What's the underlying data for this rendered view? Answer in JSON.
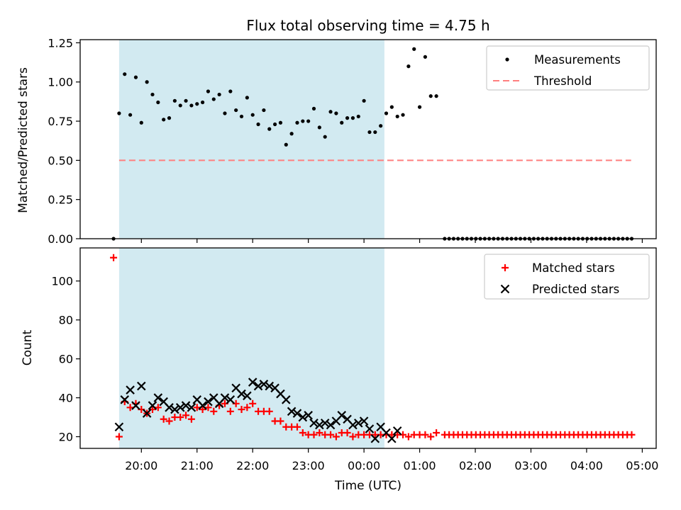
{
  "title": "Flux total observing time = 4.75 h",
  "colors": {
    "shade": "#add8e6",
    "measurement": "#000000",
    "threshold": "#ff7f7f",
    "matched": "#ff0000",
    "predicted": "#000000"
  },
  "chart_data": [
    {
      "type": "scatter",
      "panel": "top",
      "title": "Flux total observing time = 4.75 h",
      "ylabel": "Matched/Predicted stars",
      "xlabel": "",
      "x_is_time_in_hours_since": "19:00 UTC",
      "xlim": [
        18.9,
        29.25
      ],
      "ylim": [
        0,
        1.27
      ],
      "yticks": [
        0,
        0.25,
        0.5,
        0.75,
        1.0,
        1.25
      ],
      "ytick_labels": [
        "0.00",
        "0.25",
        "0.50",
        "0.75",
        "1.00",
        "1.25"
      ],
      "shaded_interval": [
        "19:36",
        "00:22"
      ],
      "legend_position": "top-right",
      "threshold": {
        "name": "Threshold",
        "value": 0.5,
        "x_range": [
          "19:36",
          "04:48"
        ],
        "style": "dashed"
      },
      "series": [
        {
          "name": "Measurements",
          "marker": "dot",
          "points": [
            [
              19.5,
              0.0
            ],
            [
              19.6,
              0.8
            ],
            [
              19.7,
              1.05
            ],
            [
              19.8,
              0.79
            ],
            [
              19.9,
              1.03
            ],
            [
              20.0,
              0.74
            ],
            [
              20.1,
              1.0
            ],
            [
              20.2,
              0.92
            ],
            [
              20.3,
              0.87
            ],
            [
              20.4,
              0.76
            ],
            [
              20.5,
              0.77
            ],
            [
              20.6,
              0.88
            ],
            [
              20.7,
              0.85
            ],
            [
              20.8,
              0.88
            ],
            [
              20.9,
              0.85
            ],
            [
              21.0,
              0.86
            ],
            [
              21.1,
              0.87
            ],
            [
              21.2,
              0.94
            ],
            [
              21.3,
              0.89
            ],
            [
              21.4,
              0.92
            ],
            [
              21.5,
              0.8
            ],
            [
              21.6,
              0.94
            ],
            [
              21.7,
              0.82
            ],
            [
              21.8,
              0.78
            ],
            [
              21.9,
              0.9
            ],
            [
              22.0,
              0.79
            ],
            [
              22.1,
              0.73
            ],
            [
              22.2,
              0.82
            ],
            [
              22.3,
              0.7
            ],
            [
              22.4,
              0.73
            ],
            [
              22.5,
              0.74
            ],
            [
              22.6,
              0.6
            ],
            [
              22.7,
              0.67
            ],
            [
              22.8,
              0.74
            ],
            [
              22.9,
              0.75
            ],
            [
              23.0,
              0.75
            ],
            [
              23.1,
              0.83
            ],
            [
              23.2,
              0.71
            ],
            [
              23.3,
              0.65
            ],
            [
              23.4,
              0.81
            ],
            [
              23.5,
              0.8
            ],
            [
              23.6,
              0.74
            ],
            [
              23.7,
              0.77
            ],
            [
              23.8,
              0.77
            ],
            [
              23.9,
              0.78
            ],
            [
              24.0,
              0.88
            ],
            [
              24.1,
              0.68
            ],
            [
              24.2,
              0.68
            ],
            [
              24.3,
              0.72
            ],
            [
              24.4,
              0.8
            ],
            [
              24.5,
              0.84
            ],
            [
              24.6,
              0.78
            ],
            [
              24.7,
              0.79
            ],
            [
              24.8,
              1.1
            ],
            [
              24.9,
              1.21
            ],
            [
              25.0,
              0.84
            ],
            [
              25.1,
              1.16
            ],
            [
              25.2,
              0.91
            ],
            [
              25.3,
              0.91
            ],
            [
              25.45,
              0
            ],
            [
              25.53,
              0
            ],
            [
              25.61,
              0
            ],
            [
              25.69,
              0
            ],
            [
              25.77,
              0
            ],
            [
              25.85,
              0
            ],
            [
              25.93,
              0
            ],
            [
              26.01,
              0
            ],
            [
              26.09,
              0
            ],
            [
              26.17,
              0
            ],
            [
              26.25,
              0
            ],
            [
              26.33,
              0
            ],
            [
              26.41,
              0
            ],
            [
              26.49,
              0
            ],
            [
              26.57,
              0
            ],
            [
              26.65,
              0
            ],
            [
              26.73,
              0
            ],
            [
              26.81,
              0
            ],
            [
              26.89,
              0
            ],
            [
              26.97,
              0
            ],
            [
              27.05,
              0
            ],
            [
              27.13,
              0
            ],
            [
              27.21,
              0
            ],
            [
              27.29,
              0
            ],
            [
              27.37,
              0
            ],
            [
              27.45,
              0
            ],
            [
              27.53,
              0
            ],
            [
              27.61,
              0
            ],
            [
              27.69,
              0
            ],
            [
              27.77,
              0
            ],
            [
              27.85,
              0
            ],
            [
              27.93,
              0
            ],
            [
              28.01,
              0
            ],
            [
              28.09,
              0
            ],
            [
              28.17,
              0
            ],
            [
              28.25,
              0
            ],
            [
              28.33,
              0
            ],
            [
              28.41,
              0
            ],
            [
              28.49,
              0
            ],
            [
              28.57,
              0
            ],
            [
              28.65,
              0
            ],
            [
              28.73,
              0
            ],
            [
              28.81,
              0
            ]
          ]
        }
      ]
    },
    {
      "type": "scatter",
      "panel": "bottom",
      "ylabel": "Count",
      "xlabel": "Time (UTC)",
      "x_is_time_in_hours_since": "19:00 UTC",
      "xlim": [
        18.9,
        29.25
      ],
      "ylim": [
        14,
        117
      ],
      "yticks": [
        20,
        40,
        60,
        80,
        100
      ],
      "xticks": [
        20,
        21,
        22,
        23,
        24,
        25,
        26,
        27,
        28,
        29
      ],
      "xtick_labels": [
        "20:00",
        "21:00",
        "22:00",
        "23:00",
        "00:00",
        "01:00",
        "02:00",
        "03:00",
        "04:00",
        "05:00"
      ],
      "shaded_interval": [
        "19:36",
        "00:22"
      ],
      "legend_position": "top-right",
      "series": [
        {
          "name": "Matched stars",
          "marker": "plus",
          "points": [
            [
              19.5,
              112
            ],
            [
              19.6,
              20
            ],
            [
              19.7,
              38
            ],
            [
              19.8,
              35
            ],
            [
              19.9,
              37
            ],
            [
              20.0,
              34
            ],
            [
              20.1,
              32
            ],
            [
              20.2,
              34
            ],
            [
              20.3,
              35
            ],
            [
              20.4,
              29
            ],
            [
              20.5,
              28
            ],
            [
              20.6,
              30
            ],
            [
              20.7,
              30
            ],
            [
              20.8,
              31
            ],
            [
              20.9,
              29
            ],
            [
              21.0,
              35
            ],
            [
              21.1,
              34
            ],
            [
              21.2,
              35
            ],
            [
              21.3,
              33
            ],
            [
              21.4,
              36
            ],
            [
              21.5,
              37
            ],
            [
              21.6,
              33
            ],
            [
              21.7,
              37
            ],
            [
              21.8,
              34
            ],
            [
              21.9,
              35
            ],
            [
              22.0,
              37
            ],
            [
              22.1,
              33
            ],
            [
              22.2,
              33
            ],
            [
              22.3,
              33
            ],
            [
              22.4,
              28
            ],
            [
              22.5,
              28
            ],
            [
              22.6,
              25
            ],
            [
              22.7,
              25
            ],
            [
              22.8,
              25
            ],
            [
              22.9,
              22
            ],
            [
              23.0,
              21
            ],
            [
              23.1,
              21
            ],
            [
              23.2,
              22
            ],
            [
              23.3,
              21
            ],
            [
              23.4,
              21
            ],
            [
              23.5,
              20
            ],
            [
              23.6,
              22
            ],
            [
              23.7,
              22
            ],
            [
              23.8,
              20
            ],
            [
              23.9,
              21
            ],
            [
              24.0,
              21
            ],
            [
              24.1,
              21
            ],
            [
              24.2,
              21
            ],
            [
              24.3,
              21
            ],
            [
              24.4,
              21
            ],
            [
              24.5,
              21
            ],
            [
              24.6,
              21
            ],
            [
              24.7,
              21
            ],
            [
              24.8,
              20
            ],
            [
              24.9,
              21
            ],
            [
              25.0,
              21
            ],
            [
              25.1,
              21
            ],
            [
              25.2,
              20
            ],
            [
              25.3,
              22
            ],
            [
              25.45,
              21
            ],
            [
              25.53,
              21
            ],
            [
              25.61,
              21
            ],
            [
              25.69,
              21
            ],
            [
              25.77,
              21
            ],
            [
              25.85,
              21
            ],
            [
              25.93,
              21
            ],
            [
              26.01,
              21
            ],
            [
              26.09,
              21
            ],
            [
              26.17,
              21
            ],
            [
              26.25,
              21
            ],
            [
              26.33,
              21
            ],
            [
              26.41,
              21
            ],
            [
              26.49,
              21
            ],
            [
              26.57,
              21
            ],
            [
              26.65,
              21
            ],
            [
              26.73,
              21
            ],
            [
              26.81,
              21
            ],
            [
              26.89,
              21
            ],
            [
              26.97,
              21
            ],
            [
              27.05,
              21
            ],
            [
              27.13,
              21
            ],
            [
              27.21,
              21
            ],
            [
              27.29,
              21
            ],
            [
              27.37,
              21
            ],
            [
              27.45,
              21
            ],
            [
              27.53,
              21
            ],
            [
              27.61,
              21
            ],
            [
              27.69,
              21
            ],
            [
              27.77,
              21
            ],
            [
              27.85,
              21
            ],
            [
              27.93,
              21
            ],
            [
              28.01,
              21
            ],
            [
              28.09,
              21
            ],
            [
              28.17,
              21
            ],
            [
              28.25,
              21
            ],
            [
              28.33,
              21
            ],
            [
              28.41,
              21
            ],
            [
              28.49,
              21
            ],
            [
              28.57,
              21
            ],
            [
              28.65,
              21
            ],
            [
              28.73,
              21
            ],
            [
              28.81,
              21
            ]
          ]
        },
        {
          "name": "Predicted stars",
          "marker": "x",
          "points": [
            [
              19.6,
              25
            ],
            [
              19.7,
              39
            ],
            [
              19.8,
              44
            ],
            [
              19.9,
              36
            ],
            [
              20.0,
              46
            ],
            [
              20.1,
              32
            ],
            [
              20.2,
              36
            ],
            [
              20.3,
              40
            ],
            [
              20.4,
              38
            ],
            [
              20.5,
              35
            ],
            [
              20.6,
              34
            ],
            [
              20.7,
              35
            ],
            [
              20.8,
              36
            ],
            [
              20.9,
              35
            ],
            [
              21.0,
              39
            ],
            [
              21.1,
              36
            ],
            [
              21.2,
              38
            ],
            [
              21.3,
              40
            ],
            [
              21.4,
              37
            ],
            [
              21.5,
              40
            ],
            [
              21.6,
              39
            ],
            [
              21.7,
              45
            ],
            [
              21.8,
              42
            ],
            [
              21.9,
              41
            ],
            [
              22.0,
              48
            ],
            [
              22.1,
              46
            ],
            [
              22.2,
              47
            ],
            [
              22.3,
              46
            ],
            [
              22.4,
              45
            ],
            [
              22.5,
              42
            ],
            [
              22.6,
              39
            ],
            [
              22.7,
              33
            ],
            [
              22.8,
              32
            ],
            [
              22.9,
              30
            ],
            [
              23.0,
              31
            ],
            [
              23.1,
              27
            ],
            [
              23.2,
              26
            ],
            [
              23.3,
              27
            ],
            [
              23.4,
              26
            ],
            [
              23.5,
              28
            ],
            [
              23.6,
              31
            ],
            [
              23.7,
              29
            ],
            [
              23.8,
              26
            ],
            [
              23.9,
              27
            ],
            [
              24.0,
              28
            ],
            [
              24.1,
              24
            ],
            [
              24.2,
              19
            ],
            [
              24.3,
              25
            ],
            [
              24.4,
              22
            ],
            [
              24.5,
              19
            ],
            [
              24.6,
              23
            ]
          ]
        }
      ]
    }
  ]
}
